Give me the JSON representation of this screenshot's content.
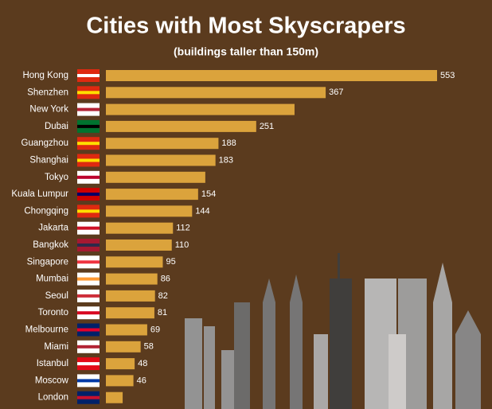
{
  "chart_data": {
    "type": "bar",
    "orientation": "horizontal",
    "title": "Cities with Most Skyscrapers",
    "subtitle": "(buildings taller than 150m)",
    "categories": [
      "Hong Kong",
      "Shenzhen",
      "New York",
      "Dubai",
      "Guangzhou",
      "Shanghai",
      "Tokyo",
      "Kuala Lumpur",
      "Chongqing",
      "Jakarta",
      "Bangkok",
      "Singapore",
      "Mumbai",
      "Seoul",
      "Toronto",
      "Melbourne",
      "Miami",
      "Istanbul",
      "Moscow",
      "London"
    ],
    "values": [
      553,
      367,
      315,
      251,
      188,
      183,
      166,
      154,
      144,
      112,
      110,
      95,
      86,
      82,
      81,
      69,
      58,
      48,
      46,
      28
    ],
    "value_labels": [
      "553",
      "367",
      null,
      "251",
      "188",
      "183",
      null,
      "154",
      "144",
      "112",
      "110",
      "95",
      "86",
      "82",
      "81",
      "69",
      "58",
      "48",
      "46",
      null
    ],
    "color": "#dba33c"
  }
}
